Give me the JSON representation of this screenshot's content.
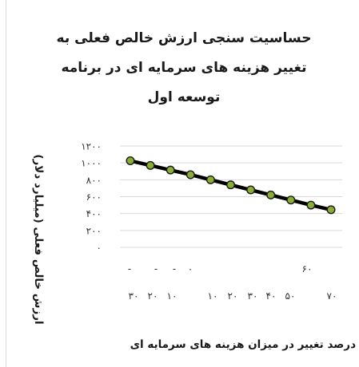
{
  "chart_data": {
    "type": "line",
    "title_lines": [
      "حساسیت سنجی ارزش خالص فعلی به",
      "تغییر هزینه های سرمایه ای در برنامه",
      "توسعه اول"
    ],
    "ylabel": "ارزش خالص فعلی (میلیارد دلار)",
    "xlabel": "درصد تغییر در میزان هزینه های سرمایه ای",
    "ylim": [
      0,
      1200
    ],
    "y_ticks": [
      0,
      200,
      400,
      600,
      800,
      1000,
      1200
    ],
    "y_tick_labels": [
      "۰",
      "۲۰۰",
      "۴۰۰",
      "۶۰۰",
      "۸۰۰",
      "۱۰۰۰",
      "۱۲۰۰"
    ],
    "x_tick_labels_row1": [
      "-",
      "-",
      "-",
      "۰",
      "۶۰"
    ],
    "x_tick_labels_row2": [
      "۳۰",
      "۲۰",
      "۱۰",
      "۱۰",
      "۲۰",
      "۳۰",
      "۴۰",
      "۵۰",
      "۷۰"
    ],
    "grid": true,
    "series": [
      {
        "values": [
          1025,
          970,
          915,
          860,
          800,
          740,
          680,
          620,
          560,
          500,
          445
        ],
        "line_color": "#000000",
        "marker_color": "#8aad34"
      }
    ]
  }
}
